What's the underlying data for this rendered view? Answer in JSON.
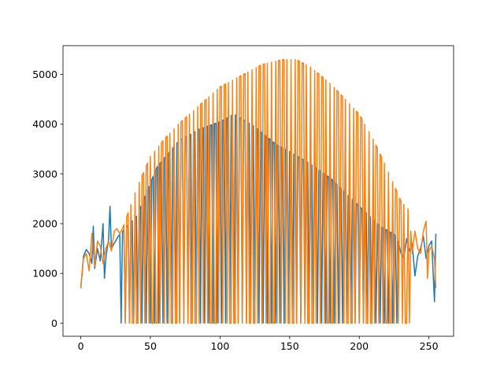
{
  "chart_data": {
    "type": "line",
    "title": "",
    "xlabel": "",
    "ylabel": "",
    "xlim": [
      -12.75,
      267.75
    ],
    "ylim": [
      -265,
      5580
    ],
    "xticks": [
      0,
      50,
      100,
      150,
      200,
      250
    ],
    "yticks": [
      0,
      1000,
      2000,
      3000,
      4000,
      5000
    ],
    "grid": false,
    "legend": "none",
    "x": {
      "start": 0,
      "end": 255,
      "step": 1
    },
    "series": [
      {
        "color": "#1f77b4",
        "values_description_note": "",
        "keypoints": [
          [
            0,
            700
          ],
          [
            2,
            1350
          ],
          [
            4,
            1480
          ],
          [
            6,
            1400
          ],
          [
            8,
            1200
          ],
          [
            9,
            1950
          ],
          [
            10,
            1100
          ],
          [
            12,
            1500
          ],
          [
            14,
            1250
          ],
          [
            16,
            2000
          ],
          [
            17,
            900
          ],
          [
            18,
            1300
          ],
          [
            20,
            1700
          ],
          [
            21,
            2350
          ],
          [
            22,
            1500
          ],
          [
            25,
            1650
          ],
          [
            27,
            1750
          ],
          [
            28,
            0
          ]
        ],
        "envelope": [
          [
            27,
            1750
          ],
          [
            40,
            2150
          ],
          [
            55,
            3150
          ],
          [
            70,
            3650
          ],
          [
            85,
            3900
          ],
          [
            100,
            4050
          ],
          [
            110,
            4200
          ],
          [
            125,
            3950
          ],
          [
            140,
            3600
          ],
          [
            150,
            3450
          ],
          [
            165,
            3200
          ],
          [
            180,
            2900
          ],
          [
            200,
            2350
          ],
          [
            215,
            1950
          ],
          [
            227,
            1750
          ]
        ],
        "oscillation_range": [
          27,
          227
        ],
        "oscillation_period": 3,
        "tail": [
          [
            227,
            1750
          ],
          [
            228,
            1650
          ],
          [
            230,
            1400
          ],
          [
            232,
            1300
          ],
          [
            234,
            1700
          ],
          [
            236,
            1450
          ],
          [
            238,
            1600
          ],
          [
            240,
            950
          ],
          [
            242,
            1350
          ],
          [
            244,
            1500
          ],
          [
            246,
            1750
          ],
          [
            248,
            1300
          ],
          [
            250,
            1550
          ],
          [
            252,
            1650
          ],
          [
            254,
            430
          ],
          [
            255,
            1800
          ]
        ]
      },
      {
        "color": "#ff7f0e",
        "keypoints": [
          [
            0,
            700
          ],
          [
            2,
            1300
          ],
          [
            4,
            1400
          ],
          [
            6,
            1050
          ],
          [
            8,
            1800
          ],
          [
            10,
            1150
          ],
          [
            12,
            1650
          ],
          [
            14,
            1550
          ],
          [
            16,
            1200
          ],
          [
            18,
            1500
          ],
          [
            20,
            1650
          ],
          [
            22,
            1450
          ],
          [
            24,
            1850
          ],
          [
            26,
            1900
          ],
          [
            28,
            1800
          ],
          [
            30,
            1900
          ]
        ],
        "envelope": [
          [
            30,
            1900
          ],
          [
            40,
            2700
          ],
          [
            50,
            3350
          ],
          [
            60,
            3700
          ],
          [
            70,
            4000
          ],
          [
            80,
            4250
          ],
          [
            90,
            4500
          ],
          [
            100,
            4750
          ],
          [
            110,
            4900
          ],
          [
            120,
            5050
          ],
          [
            130,
            5200
          ],
          [
            145,
            5300
          ],
          [
            155,
            5300
          ],
          [
            165,
            5150
          ],
          [
            180,
            4800
          ],
          [
            190,
            4500
          ],
          [
            200,
            4200
          ],
          [
            210,
            3700
          ],
          [
            220,
            3100
          ],
          [
            230,
            2450
          ],
          [
            235,
            2300
          ]
        ],
        "oscillation_range": [
          30,
          236
        ],
        "oscillation_period": 2.8,
        "tail": [
          [
            236,
            2300
          ],
          [
            238,
            1400
          ],
          [
            240,
            1850
          ],
          [
            242,
            1500
          ],
          [
            244,
            1400
          ],
          [
            246,
            1850
          ],
          [
            248,
            2050
          ],
          [
            249,
            900
          ],
          [
            250,
            1450
          ],
          [
            252,
            1550
          ],
          [
            254,
            1300
          ],
          [
            255,
            700
          ]
        ]
      }
    ]
  }
}
